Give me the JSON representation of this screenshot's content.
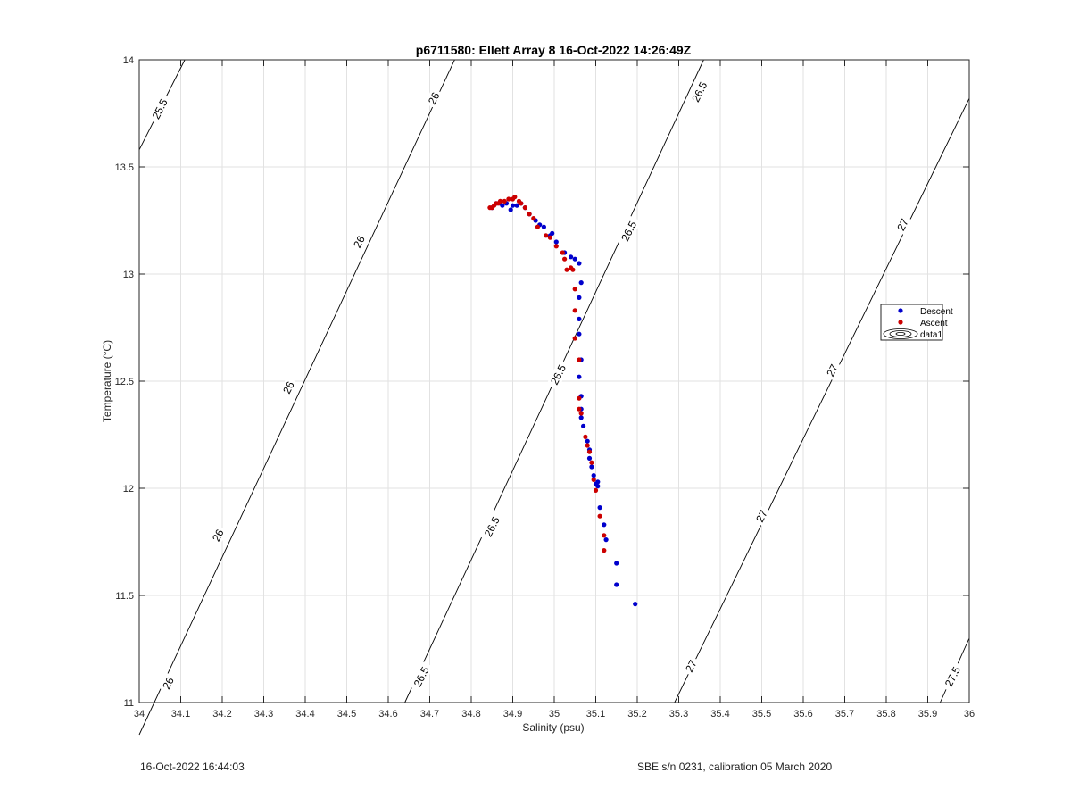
{
  "footer": {
    "left": "16-Oct-2022 16:44:03",
    "right": "SBE s/n 0231, calibration 05 March 2020"
  },
  "chart_data": {
    "type": "scatter",
    "title": "p6711580: Ellett Array 8 16-Oct-2022 14:26:49Z",
    "xlabel": "Salinity (psu)",
    "ylabel": "Temperature (°C)",
    "xlim": [
      34,
      36
    ],
    "ylim": [
      11,
      14
    ],
    "grid": true,
    "legend_position": "right",
    "x_ticks": [
      "34",
      "34.1",
      "34.2",
      "34.3",
      "34.4",
      "34.5",
      "34.6",
      "34.7",
      "34.8",
      "34.9",
      "35",
      "35.1",
      "35.2",
      "35.3",
      "35.4",
      "35.5",
      "35.6",
      "35.7",
      "35.8",
      "35.9",
      "36"
    ],
    "y_ticks": [
      "11",
      "11.5",
      "12",
      "12.5",
      "13",
      "13.5",
      "14"
    ],
    "contours": [
      {
        "level": "25.5",
        "points": [
          [
            34.0,
            13.58
          ],
          [
            34.11,
            14.0
          ]
        ]
      },
      {
        "level": "26",
        "points": [
          [
            34.0,
            10.85
          ],
          [
            34.76,
            14.0
          ]
        ]
      },
      {
        "level": "26.5",
        "points": [
          [
            34.64,
            11.0
          ],
          [
            35.36,
            14.0
          ]
        ]
      },
      {
        "level": "27",
        "points": [
          [
            35.29,
            11.0
          ],
          [
            36.0,
            13.82
          ]
        ]
      },
      {
        "level": "27.5",
        "points": [
          [
            35.93,
            11.0
          ],
          [
            36.0,
            11.3
          ]
        ]
      }
    ],
    "contour_labels": [
      {
        "text": "25.5",
        "x": 34.05,
        "y": 13.77
      },
      {
        "text": "26",
        "x": 34.07,
        "y": 11.09
      },
      {
        "text": "26",
        "x": 34.19,
        "y": 11.78
      },
      {
        "text": "26",
        "x": 34.36,
        "y": 12.47
      },
      {
        "text": "26",
        "x": 34.53,
        "y": 13.15
      },
      {
        "text": "26",
        "x": 34.71,
        "y": 13.82
      },
      {
        "text": "26.5",
        "x": 34.68,
        "y": 11.12
      },
      {
        "text": "26.5",
        "x": 34.85,
        "y": 11.82
      },
      {
        "text": "26.5",
        "x": 35.01,
        "y": 12.53
      },
      {
        "text": "26.5",
        "x": 35.18,
        "y": 13.2
      },
      {
        "text": "26.5",
        "x": 35.35,
        "y": 13.85
      },
      {
        "text": "27",
        "x": 35.33,
        "y": 11.17
      },
      {
        "text": "27",
        "x": 35.5,
        "y": 11.87
      },
      {
        "text": "27",
        "x": 35.67,
        "y": 12.55
      },
      {
        "text": "27",
        "x": 35.84,
        "y": 13.23
      },
      {
        "text": "27.5",
        "x": 35.96,
        "y": 11.12
      }
    ],
    "series": [
      {
        "name": "Descent",
        "color": "#0000cc",
        "points": [
          [
            35.195,
            11.46
          ],
          [
            35.15,
            11.55
          ],
          [
            35.15,
            11.65
          ],
          [
            35.125,
            11.76
          ],
          [
            35.12,
            11.83
          ],
          [
            35.11,
            11.91
          ],
          [
            35.105,
            12.01
          ],
          [
            35.105,
            12.03
          ],
          [
            35.1,
            12.02
          ],
          [
            35.095,
            12.06
          ],
          [
            35.09,
            12.1
          ],
          [
            35.085,
            12.14
          ],
          [
            35.085,
            12.18
          ],
          [
            35.08,
            12.22
          ],
          [
            35.07,
            12.29
          ],
          [
            35.065,
            12.33
          ],
          [
            35.065,
            12.37
          ],
          [
            35.065,
            12.43
          ],
          [
            35.06,
            12.52
          ],
          [
            35.065,
            12.6
          ],
          [
            35.06,
            12.72
          ],
          [
            35.06,
            12.79
          ],
          [
            35.06,
            12.89
          ],
          [
            35.065,
            12.96
          ],
          [
            35.06,
            13.05
          ],
          [
            35.05,
            13.07
          ],
          [
            35.04,
            13.08
          ],
          [
            35.025,
            13.1
          ],
          [
            35.005,
            13.15
          ],
          [
            34.995,
            13.19
          ],
          [
            34.99,
            13.18
          ],
          [
            34.975,
            13.22
          ],
          [
            34.965,
            13.23
          ],
          [
            34.955,
            13.25
          ],
          [
            34.94,
            13.28
          ],
          [
            34.93,
            13.31
          ],
          [
            34.92,
            13.33
          ],
          [
            34.91,
            13.32
          ],
          [
            34.9,
            13.32
          ],
          [
            34.895,
            13.3
          ],
          [
            34.885,
            13.33
          ],
          [
            34.875,
            13.32
          ],
          [
            34.87,
            13.33
          ],
          [
            34.86,
            13.33
          ],
          [
            34.85,
            13.31
          ]
        ]
      },
      {
        "name": "Ascent",
        "color": "#cc0000",
        "points": [
          [
            35.12,
            11.71
          ],
          [
            35.12,
            11.78
          ],
          [
            35.11,
            11.87
          ],
          [
            35.1,
            11.99
          ],
          [
            35.095,
            12.04
          ],
          [
            35.09,
            12.12
          ],
          [
            35.085,
            12.17
          ],
          [
            35.08,
            12.2
          ],
          [
            35.075,
            12.24
          ],
          [
            35.065,
            12.35
          ],
          [
            35.06,
            12.37
          ],
          [
            35.06,
            12.42
          ],
          [
            35.06,
            12.6
          ],
          [
            35.05,
            12.7
          ],
          [
            35.05,
            12.83
          ],
          [
            35.05,
            12.93
          ],
          [
            35.045,
            13.02
          ],
          [
            35.04,
            13.03
          ],
          [
            35.03,
            13.02
          ],
          [
            35.025,
            13.07
          ],
          [
            35.02,
            13.1
          ],
          [
            35.005,
            13.13
          ],
          [
            34.99,
            13.17
          ],
          [
            34.98,
            13.18
          ],
          [
            34.96,
            13.22
          ],
          [
            34.95,
            13.26
          ],
          [
            34.94,
            13.28
          ],
          [
            34.93,
            13.31
          ],
          [
            34.92,
            13.33
          ],
          [
            34.915,
            13.34
          ],
          [
            34.905,
            13.36
          ],
          [
            34.9,
            13.35
          ],
          [
            34.89,
            13.35
          ],
          [
            34.88,
            13.34
          ],
          [
            34.87,
            13.34
          ],
          [
            34.865,
            13.33
          ],
          [
            34.86,
            13.33
          ],
          [
            34.855,
            13.32
          ],
          [
            34.85,
            13.31
          ],
          [
            34.845,
            13.31
          ]
        ]
      },
      {
        "name": "data1",
        "color": "#000000",
        "points": []
      }
    ]
  }
}
